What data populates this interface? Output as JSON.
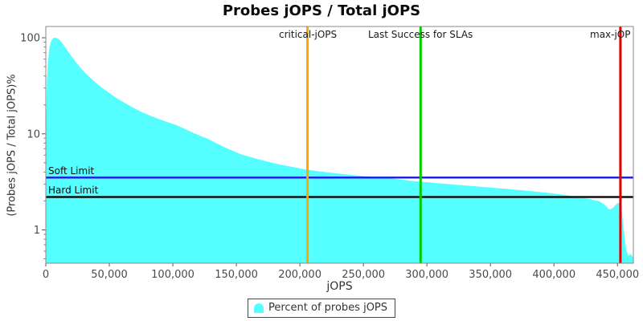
{
  "chart_data": {
    "type": "area",
    "title": "Probes jOPS / Total jOPS",
    "xlabel": "jOPS",
    "ylabel": "(Probes jOPS / Total jOPS)%",
    "y_scale": "log",
    "grid": false,
    "x_range": [
      0,
      462500
    ],
    "y_range": [
      0.45,
      131
    ],
    "x_ticks": [
      0,
      50000,
      100000,
      150000,
      200000,
      250000,
      300000,
      350000,
      400000,
      450000
    ],
    "x_tick_labels": [
      "0",
      "50,000",
      "100,000",
      "150,000",
      "200,000",
      "250,000",
      "300,000",
      "350,000",
      "400,000",
      "450,000"
    ],
    "y_ticks": [
      100,
      10,
      1
    ],
    "y_tick_labels": [
      "100",
      "10",
      "1"
    ],
    "series": [
      {
        "name": "Percent of probes jOPS",
        "color": "#55FFFF",
        "points": [
          [
            300,
            15
          ],
          [
            800,
            35
          ],
          [
            1600,
            55
          ],
          [
            2600,
            75
          ],
          [
            3600,
            88
          ],
          [
            4800,
            96
          ],
          [
            6000,
            99.5
          ],
          [
            8000,
            100
          ],
          [
            10000,
            97
          ],
          [
            12000,
            91
          ],
          [
            14000,
            84
          ],
          [
            16000,
            77
          ],
          [
            18500,
            69
          ],
          [
            21000,
            62
          ],
          [
            24000,
            55
          ],
          [
            27000,
            49
          ],
          [
            30000,
            44.5
          ],
          [
            34000,
            39.5
          ],
          [
            38000,
            35.3
          ],
          [
            43000,
            31
          ],
          [
            48000,
            27.7
          ],
          [
            54000,
            24.4
          ],
          [
            60000,
            21.8
          ],
          [
            67000,
            19.3
          ],
          [
            75000,
            17
          ],
          [
            83000,
            15.3
          ],
          [
            92000,
            13.8
          ],
          [
            103000,
            12.3
          ],
          [
            115000,
            10.4
          ],
          [
            128000,
            8.8
          ],
          [
            141000,
            7.2
          ],
          [
            154000,
            6.1
          ],
          [
            168000,
            5.4
          ],
          [
            182000,
            4.85
          ],
          [
            195000,
            4.5
          ],
          [
            207000,
            4.2
          ],
          [
            220000,
            4.0
          ],
          [
            235000,
            3.8
          ],
          [
            250000,
            3.63
          ],
          [
            266000,
            3.5
          ],
          [
            280000,
            3.33
          ],
          [
            295000,
            3.17
          ],
          [
            312000,
            3.03
          ],
          [
            330000,
            2.9
          ],
          [
            350000,
            2.76
          ],
          [
            370000,
            2.62
          ],
          [
            390000,
            2.47
          ],
          [
            405000,
            2.35
          ],
          [
            418000,
            2.21
          ],
          [
            428000,
            2.1
          ],
          [
            436000,
            1.98
          ],
          [
            440000,
            1.82
          ],
          [
            443500,
            1.62
          ],
          [
            446500,
            1.7
          ],
          [
            449500,
            1.88
          ],
          [
            452000,
            1.93
          ],
          [
            453500,
            1.55
          ],
          [
            455000,
            0.95
          ],
          [
            456800,
            0.62
          ],
          [
            458500,
            0.54
          ],
          [
            460500,
            0.56
          ],
          [
            462300,
            0.52
          ]
        ]
      }
    ],
    "h_markers": [
      {
        "label": "Soft Limit",
        "value": 3.5,
        "color": "#2222DD"
      },
      {
        "label": "Hard Limit",
        "value": 2.2,
        "color": "#111111"
      }
    ],
    "v_markers": [
      {
        "label": "critical-jOPS",
        "value": 206000,
        "color": "#FFA500"
      },
      {
        "label": "Last Success for SLAs",
        "value": 295000,
        "color": "#00CC00"
      },
      {
        "label": "max-jOP",
        "value": 452300,
        "color": "#E00000"
      }
    ],
    "legend": {
      "label": "Percent of probes jOPS",
      "swatch_color": "#55FFFF",
      "position": "bottom"
    }
  }
}
